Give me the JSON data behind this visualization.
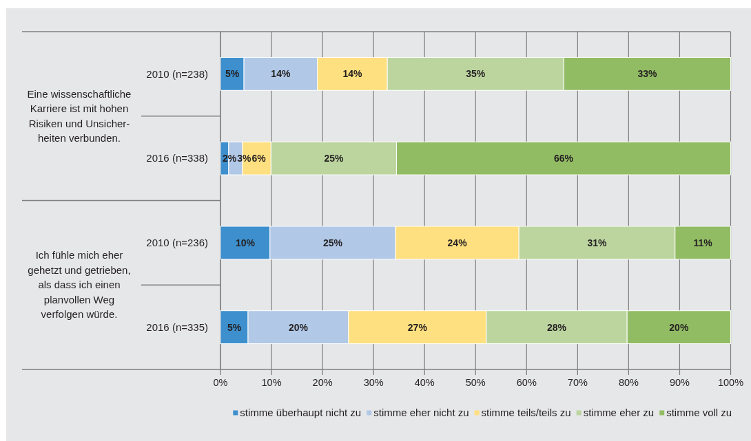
{
  "chart_data": {
    "type": "bar",
    "orientation": "horizontal",
    "stacked": true,
    "categories": [
      "2010 (n=238)",
      "2016 (n=338)",
      "2010 (n=236)",
      "2016 (n=335)"
    ],
    "series": [
      {
        "name": "stimme überhaupt nicht zu",
        "color": "#3d8fcd",
        "values": [
          4.6,
          1.6,
          9.7,
          5.4
        ],
        "value_labels": [
          "5%",
          "2%",
          "10%",
          "5%"
        ]
      },
      {
        "name": "stimme eher nicht zu",
        "color": "#b1c8e7",
        "values": [
          14.4,
          2.7,
          24.6,
          19.7
        ],
        "value_labels": [
          "14%",
          "3%",
          "25%",
          "20%"
        ]
      },
      {
        "name": "stimme teils/teils zu",
        "color": "#ffe080",
        "values": [
          13.7,
          5.6,
          24.2,
          27.0
        ],
        "value_labels": [
          "14%",
          "6%",
          "24%",
          "27%"
        ]
      },
      {
        "name": "stimme eher zu",
        "color": "#bcd59f",
        "values": [
          34.6,
          24.6,
          30.6,
          27.6
        ],
        "value_labels": [
          "35%",
          "25%",
          "31%",
          "28%"
        ]
      },
      {
        "name": "stimme voll zu",
        "color": "#92bc64",
        "values": [
          32.7,
          65.5,
          10.9,
          20.3
        ],
        "value_labels": [
          "33%",
          "66%",
          "11%",
          "20%"
        ]
      }
    ],
    "xlim": [
      0,
      100
    ],
    "xticks": [
      {
        "value": 0,
        "label": "0%"
      },
      {
        "value": 10,
        "label": "10%"
      },
      {
        "value": 20,
        "label": "20%"
      },
      {
        "value": 30,
        "label": "30%"
      },
      {
        "value": 40,
        "label": "40%"
      },
      {
        "value": 50,
        "label": "50%"
      },
      {
        "value": 60,
        "label": "60%"
      },
      {
        "value": 70,
        "label": "70%"
      },
      {
        "value": 80,
        "label": "80%"
      },
      {
        "value": 90,
        "label": "90%"
      },
      {
        "value": 100,
        "label": "100%"
      }
    ],
    "grid": "x",
    "legend": "bottom",
    "annotations": [
      "Eine wissenschaftliche\nKarriere ist mit hohen\nRisiken und Unsicher-\nheiten verbunden.",
      "Ich fühle mich eher\ngehetzt und getrieben,\nals dass ich einen\nplanvollen Weg\nverfolgen würde."
    ]
  }
}
